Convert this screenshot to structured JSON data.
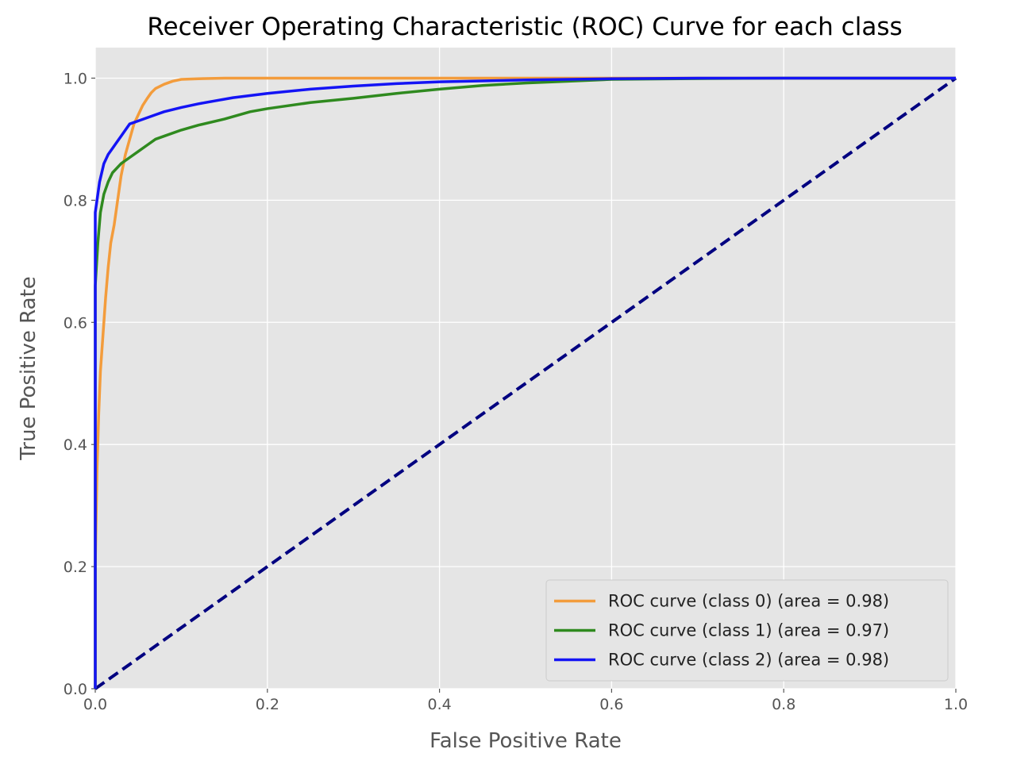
{
  "chart_data": {
    "type": "line",
    "title": "Receiver Operating Characteristic (ROC) Curve for each class",
    "xlabel": "False Positive Rate",
    "ylabel": "True Positive Rate",
    "xlim": [
      0.0,
      1.0
    ],
    "ylim": [
      0.0,
      1.05
    ],
    "xticks": [
      0.0,
      0.2,
      0.4,
      0.6,
      0.8,
      1.0
    ],
    "xtick_labels": [
      "0.0",
      "0.2",
      "0.4",
      "0.6",
      "0.8",
      "1.0"
    ],
    "yticks": [
      0.0,
      0.2,
      0.4,
      0.6,
      0.8,
      1.0
    ],
    "ytick_labels": [
      "0.0",
      "0.2",
      "0.4",
      "0.6",
      "0.8",
      "1.0"
    ],
    "grid": true,
    "legend_position": "lower-right",
    "background": "#e5e5e5",
    "series": [
      {
        "name": "ROC curve (class 0) (area = 0.98)",
        "color": "#f39c3c",
        "dashed": false,
        "x": [
          0.0,
          0.0,
          0.002,
          0.004,
          0.006,
          0.009,
          0.012,
          0.015,
          0.018,
          0.022,
          0.026,
          0.03,
          0.035,
          0.04,
          0.045,
          0.05,
          0.055,
          0.06,
          0.065,
          0.07,
          0.08,
          0.09,
          0.1,
          0.12,
          0.15,
          0.2,
          0.3,
          0.5,
          0.7,
          1.0
        ],
        "y": [
          0.0,
          0.2,
          0.36,
          0.45,
          0.52,
          0.58,
          0.64,
          0.69,
          0.73,
          0.76,
          0.8,
          0.84,
          0.875,
          0.9,
          0.925,
          0.94,
          0.955,
          0.966,
          0.976,
          0.983,
          0.99,
          0.995,
          0.998,
          0.999,
          1.0,
          1.0,
          1.0,
          1.0,
          1.0,
          1.0
        ]
      },
      {
        "name": "ROC curve (class 1) (area = 0.97)",
        "color": "#2f8a1f",
        "dashed": false,
        "x": [
          0.0,
          0.0,
          0.003,
          0.006,
          0.01,
          0.015,
          0.02,
          0.03,
          0.04,
          0.05,
          0.06,
          0.07,
          0.08,
          0.1,
          0.12,
          0.15,
          0.18,
          0.2,
          0.25,
          0.3,
          0.35,
          0.4,
          0.45,
          0.5,
          0.55,
          0.6,
          0.68,
          0.8,
          1.0
        ],
        "y": [
          0.0,
          0.66,
          0.73,
          0.78,
          0.81,
          0.83,
          0.845,
          0.86,
          0.87,
          0.88,
          0.89,
          0.9,
          0.905,
          0.915,
          0.923,
          0.933,
          0.945,
          0.95,
          0.96,
          0.967,
          0.975,
          0.982,
          0.988,
          0.992,
          0.995,
          0.998,
          0.999,
          1.0,
          1.0
        ]
      },
      {
        "name": "ROC curve (class 2) (area = 0.98)",
        "color": "#1414f5",
        "dashed": false,
        "x": [
          0.0,
          0.0,
          0.002,
          0.005,
          0.01,
          0.015,
          0.02,
          0.025,
          0.03,
          0.035,
          0.04,
          0.05,
          0.06,
          0.07,
          0.08,
          0.1,
          0.12,
          0.14,
          0.16,
          0.2,
          0.25,
          0.3,
          0.35,
          0.4,
          0.5,
          0.6,
          0.7,
          0.8,
          1.0
        ],
        "y": [
          0.0,
          0.78,
          0.8,
          0.83,
          0.86,
          0.875,
          0.885,
          0.895,
          0.905,
          0.915,
          0.925,
          0.93,
          0.935,
          0.94,
          0.945,
          0.952,
          0.958,
          0.963,
          0.968,
          0.975,
          0.982,
          0.987,
          0.991,
          0.994,
          0.997,
          0.999,
          1.0,
          1.0,
          1.0
        ]
      },
      {
        "name": "",
        "color": "#000080",
        "dashed": true,
        "x": [
          0.0,
          1.0
        ],
        "y": [
          0.0,
          1.0
        ]
      }
    ]
  }
}
